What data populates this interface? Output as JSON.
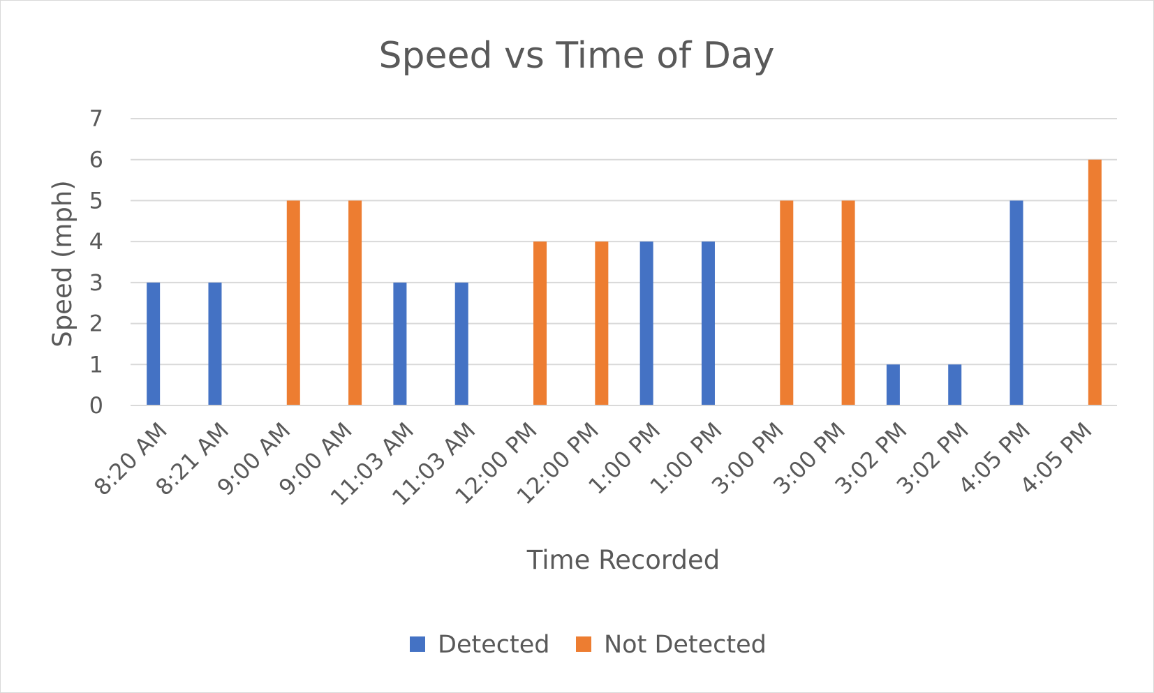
{
  "chart_data": {
    "type": "bar",
    "title": "Speed vs Time of Day",
    "xlabel": "Time Recorded",
    "ylabel": "Speed (mph)",
    "ylim": [
      0,
      7
    ],
    "yticks": [
      "0",
      "1",
      "2",
      "3",
      "4",
      "5",
      "6",
      "7"
    ],
    "grid": true,
    "legend_position": "bottom",
    "categories": [
      "8:20 AM",
      "8:21 AM",
      "9:00 AM",
      "9:00 AM",
      "11:03 AM",
      "11:03 AM",
      "12:00 PM",
      "12:00 PM",
      "1:00 PM",
      "1:00 PM",
      "3:00 PM",
      "3:00 PM",
      "3:02 PM",
      "3:02 PM",
      "4:05 PM",
      "4:05 PM"
    ],
    "series": [
      {
        "name": "Detected",
        "color": "#4472c4",
        "values": [
          3,
          3,
          null,
          null,
          3,
          3,
          null,
          null,
          4,
          4,
          null,
          null,
          1,
          1,
          5,
          null
        ]
      },
      {
        "name": "Not Detected",
        "color": "#ed7d31",
        "values": [
          null,
          null,
          5,
          5,
          null,
          null,
          4,
          4,
          null,
          null,
          5,
          5,
          null,
          null,
          null,
          6
        ]
      }
    ]
  }
}
